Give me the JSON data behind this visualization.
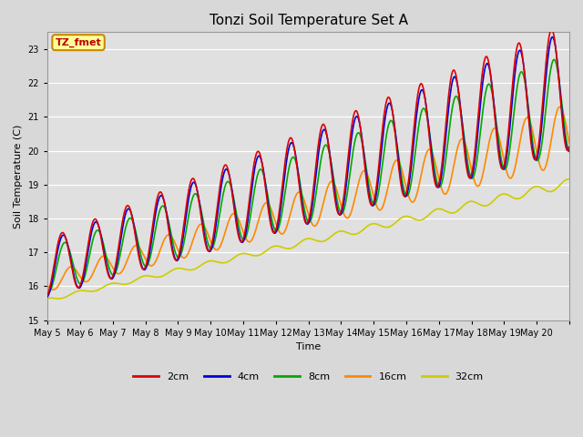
{
  "title": "Tonzi Soil Temperature Set A",
  "xlabel": "Time",
  "ylabel": "Soil Temperature (C)",
  "ylim": [
    15.0,
    23.5
  ],
  "yticks": [
    15.0,
    16.0,
    17.0,
    18.0,
    19.0,
    20.0,
    21.0,
    22.0,
    23.0
  ],
  "fig_bg": "#d8d8d8",
  "plot_bg": "#e0e0e0",
  "annotation_text": "TZ_fmet",
  "annotation_bg": "#ffff99",
  "annotation_border": "#cc8800",
  "series": {
    "2cm": {
      "color": "#dd0000",
      "lw": 1.2
    },
    "4cm": {
      "color": "#0000dd",
      "lw": 1.2
    },
    "8cm": {
      "color": "#00aa00",
      "lw": 1.2
    },
    "16cm": {
      "color": "#ff8800",
      "lw": 1.2
    },
    "32cm": {
      "color": "#cccc00",
      "lw": 1.2
    }
  },
  "x_tick_labels": [
    "May 5",
    "May 6",
    "May 7",
    "May 8",
    "May 9",
    "May 10",
    "May 11",
    "May 12",
    "May 13",
    "May 14",
    "May 15",
    "May 16",
    "May 17",
    "May 18",
    "May 19",
    "May 20"
  ],
  "n_days": 16,
  "points_per_day": 144
}
